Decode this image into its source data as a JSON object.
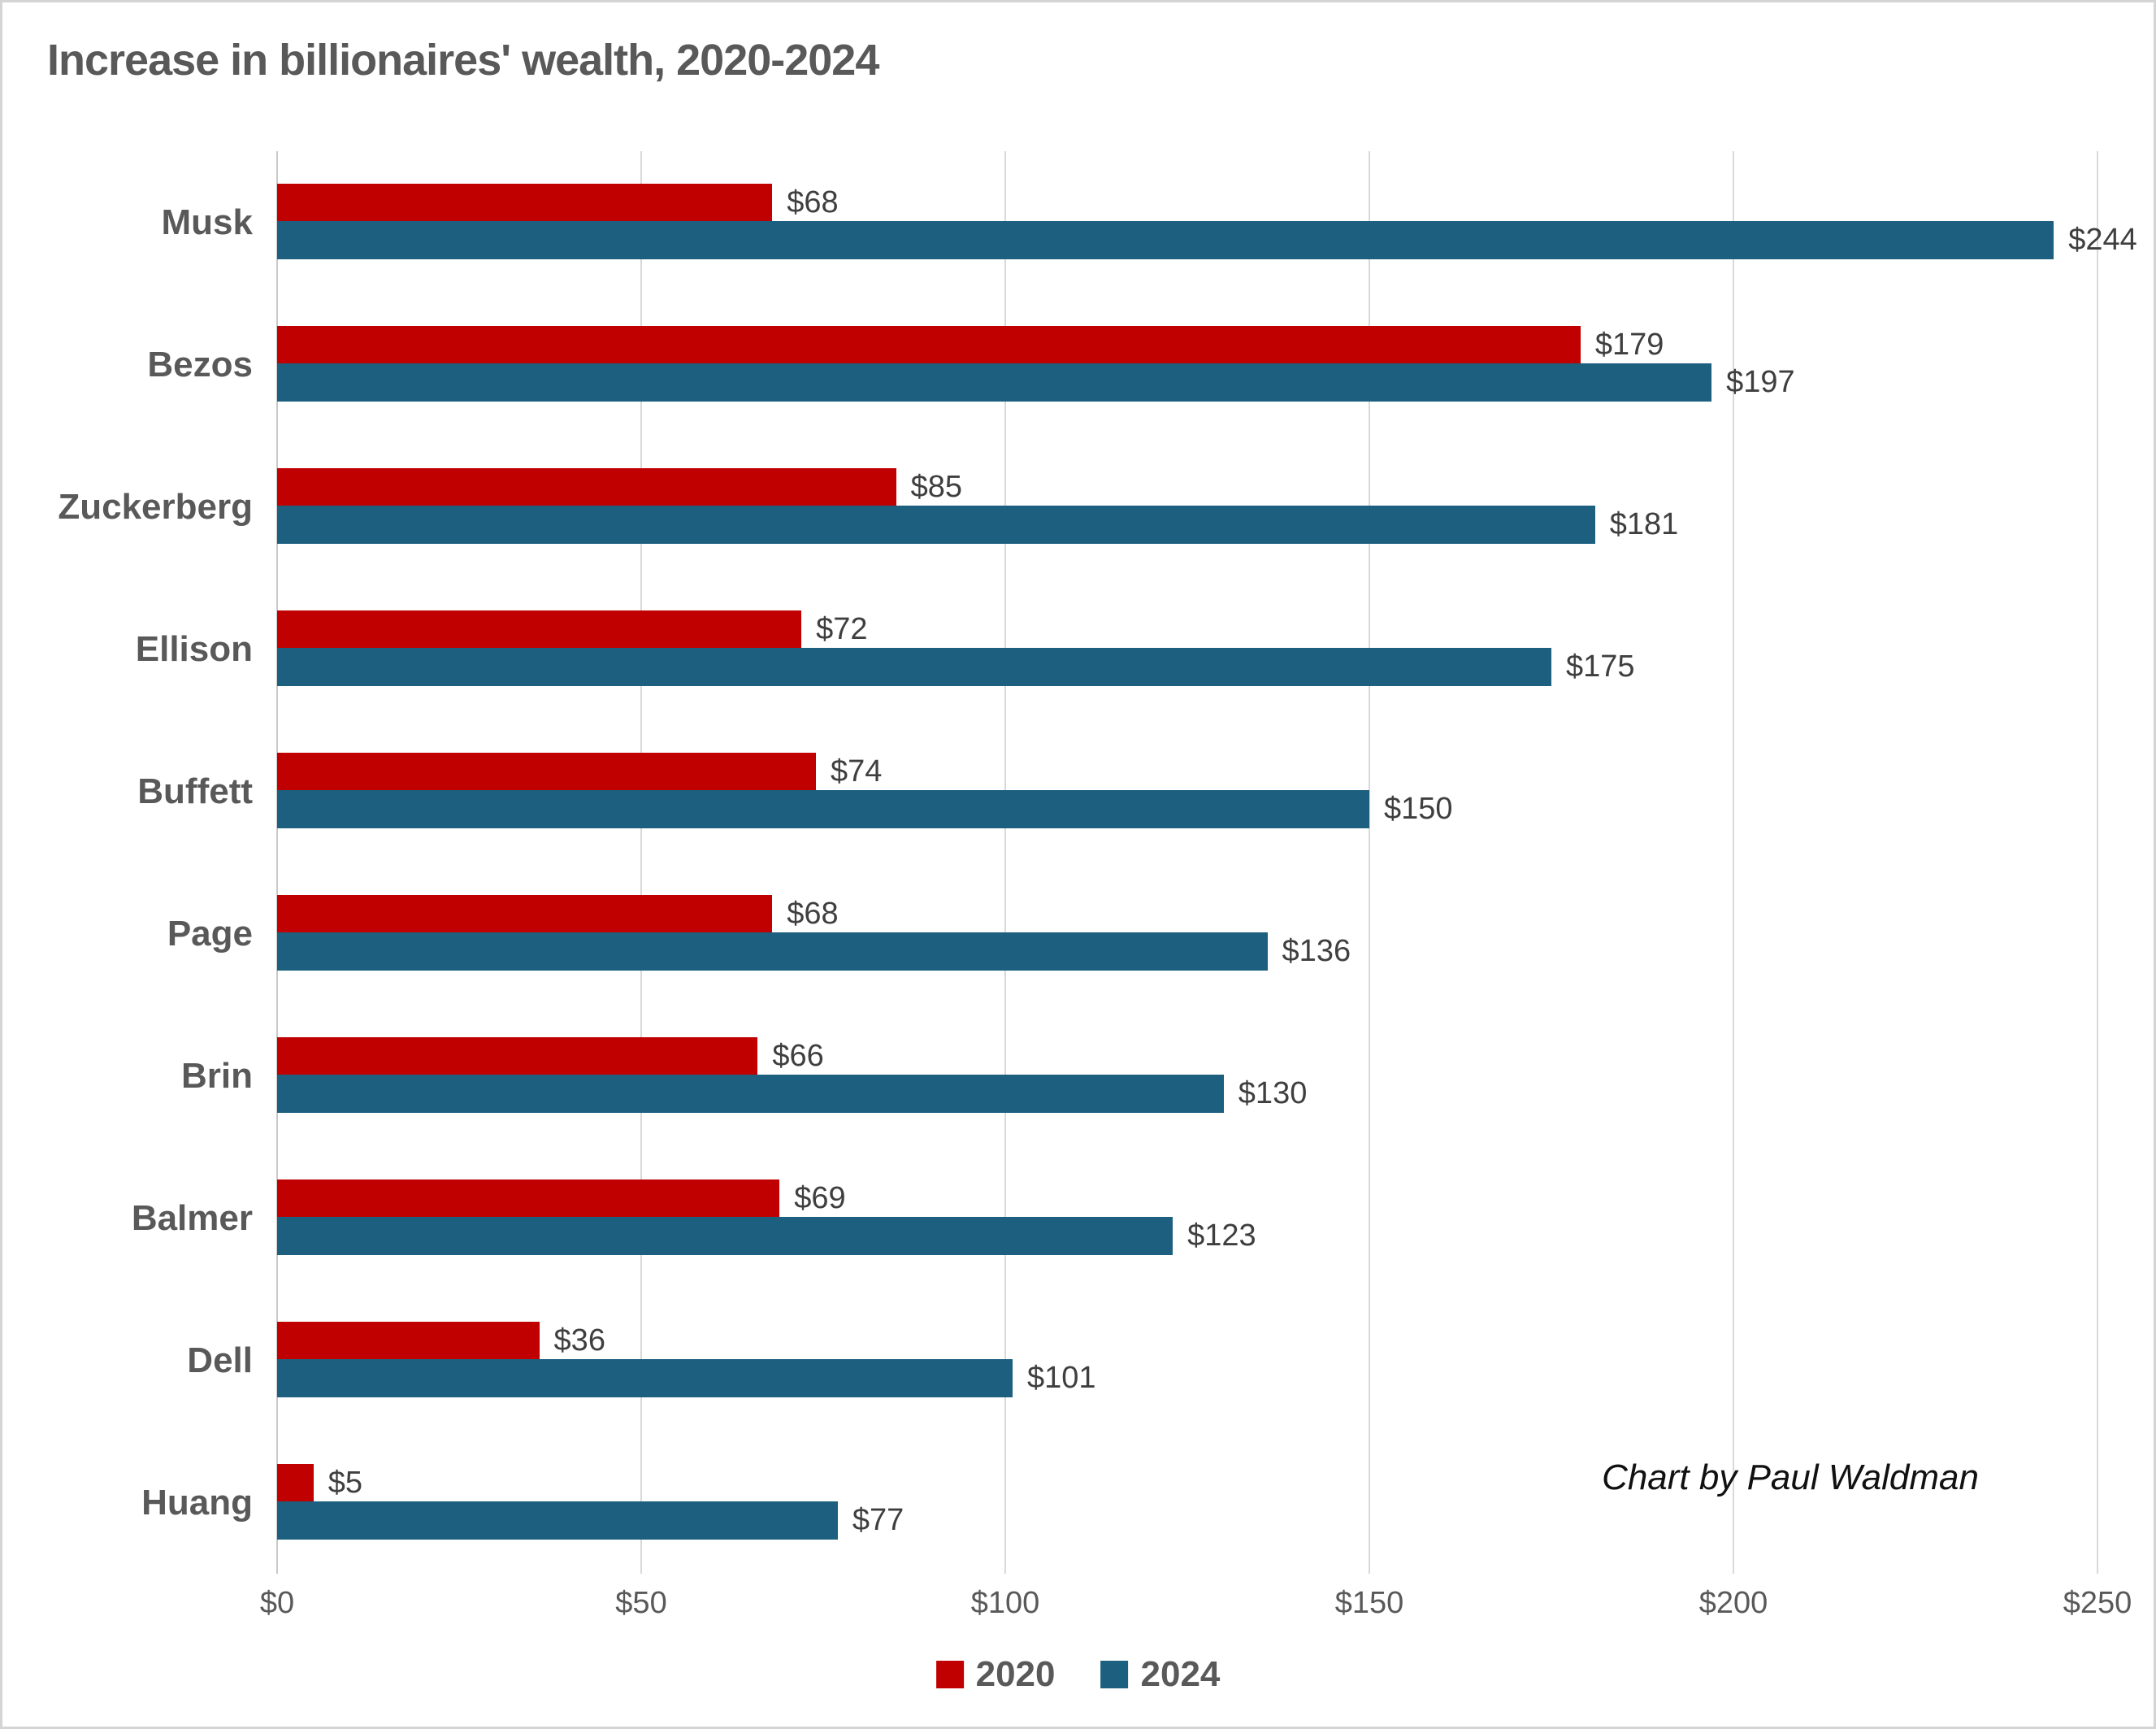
{
  "title": "Increase in billionaires' wealth, 2020-2024",
  "annotation": "Chart by Paul Waldman",
  "colors": {
    "red_2020": "#c00000",
    "blue_2024": "#1c5f7f",
    "title_text": "#595959",
    "data_label_text": "#3f3f3f",
    "gridline": "#d9d9d9"
  },
  "legend": [
    {
      "label": "2020",
      "color": "#c00000"
    },
    {
      "label": "2024",
      "color": "#1c5f7f"
    }
  ],
  "x_axis": {
    "ticks": [
      "$0",
      "$50",
      "$100",
      "$150",
      "$200",
      "$250"
    ],
    "min": 0,
    "max": 250
  },
  "chart_data": {
    "type": "bar",
    "orientation": "horizontal",
    "title": "Increase in billionaires' wealth, 2020-2024",
    "categories": [
      "Musk",
      "Bezos",
      "Zuckerberg",
      "Ellison",
      "Buffett",
      "Page",
      "Brin",
      "Balmer",
      "Dell",
      "Huang"
    ],
    "series": [
      {
        "name": "2020",
        "color": "#c00000",
        "values": [
          68,
          179,
          85,
          72,
          74,
          68,
          66,
          69,
          36,
          5
        ],
        "labels": [
          "$68",
          "$179",
          "$85",
          "$72",
          "$74",
          "$68",
          "$66",
          "$69",
          "$36",
          "$5"
        ]
      },
      {
        "name": "2024",
        "color": "#1c5f7f",
        "values": [
          244,
          197,
          181,
          175,
          150,
          136,
          130,
          123,
          101,
          77
        ],
        "labels": [
          "$244",
          "$197",
          "$181",
          "$175",
          "$150",
          "$136",
          "$130",
          "$123",
          "$101",
          "$77"
        ]
      }
    ],
    "xlim": [
      0,
      250
    ],
    "grid": "vertical",
    "legend_position": "bottom",
    "annotation": "Chart by Paul Waldman"
  }
}
